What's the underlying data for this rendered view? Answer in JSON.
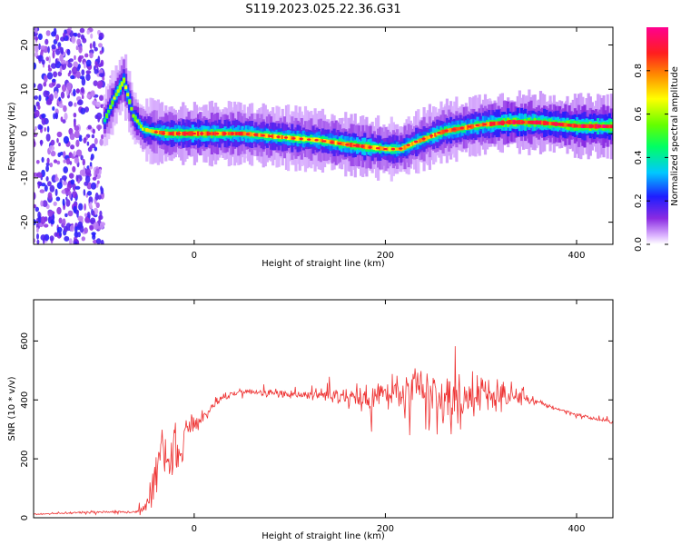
{
  "figure_title": "S119.2023.025.22.36.G31",
  "chart_data": [
    {
      "type": "heatmap",
      "title": "",
      "xlabel": "Height of straight line (km)",
      "ylabel": "Frequency (Hz)",
      "xlim": [
        -168,
        438
      ],
      "ylim": [
        -25,
        24
      ],
      "xticks": [
        0,
        200,
        400
      ],
      "yticks": [
        -20,
        -10,
        0,
        10,
        20
      ],
      "colorbar": {
        "label": "Normalized spectral amplitude",
        "range": [
          0,
          1
        ],
        "ticks": [
          0.0,
          0.2,
          0.4,
          0.6,
          0.8
        ],
        "colormap": "rainbow (white-purple-blue-cyan-green-yellow-red-magenta)"
      },
      "ridge": {
        "description": "Doppler frequency track of peak spectral amplitude",
        "x": [
          -95,
          -85,
          -75,
          -65,
          -55,
          -45,
          -30,
          0,
          50,
          100,
          130,
          160,
          180,
          200,
          215,
          230,
          260,
          300,
          330,
          360,
          400,
          438
        ],
        "y": [
          3,
          8,
          12,
          4,
          1,
          0.5,
          0,
          0,
          0,
          -1,
          -1.5,
          -2.5,
          -3,
          -3.5,
          -3.5,
          -2,
          0.5,
          2,
          2.6,
          2.5,
          1.7,
          1.6
        ],
        "peak_amplitude": [
          0.5,
          0.6,
          0.7,
          0.55,
          0.6,
          0.7,
          0.8,
          0.85,
          0.8,
          0.75,
          0.75,
          0.8,
          0.85,
          0.7,
          0.7,
          0.75,
          0.8,
          0.8,
          0.95,
          0.9,
          0.95,
          0.95
        ]
      },
      "noise_region_x": [
        -168,
        -95
      ]
    },
    {
      "type": "line",
      "title": "",
      "xlabel": "Height of straight line (km)",
      "ylabel": "SNR (10 * v/v)",
      "xlim": [
        -168,
        438
      ],
      "ylim": [
        0,
        740
      ],
      "xticks": [
        0,
        200,
        400
      ],
      "yticks": [
        0,
        200,
        400,
        600
      ],
      "color": "#ee3333",
      "series": [
        {
          "name": "",
          "x": [
            -168,
            -100,
            -60,
            -50,
            -40,
            -35,
            -30,
            -25,
            -20,
            -15,
            -10,
            0,
            10,
            20,
            30,
            50,
            80,
            100,
            150,
            180,
            200,
            230,
            250,
            265,
            280,
            300,
            330,
            345,
            360,
            380,
            400,
            420,
            438
          ],
          "y": [
            12,
            20,
            20,
            35,
            120,
            280,
            230,
            150,
            260,
            190,
            280,
            320,
            340,
            380,
            410,
            430,
            425,
            420,
            415,
            400,
            420,
            420,
            400,
            390,
            400,
            420,
            410,
            410,
            390,
            370,
            350,
            335,
            325
          ],
          "variability": [
            4,
            6,
            8,
            40,
            120,
            120,
            110,
            100,
            120,
            90,
            70,
            40,
            30,
            20,
            20,
            15,
            20,
            20,
            40,
            90,
            100,
            150,
            170,
            150,
            130,
            80,
            60,
            40,
            15,
            10,
            10,
            10,
            10
          ]
        }
      ]
    }
  ]
}
